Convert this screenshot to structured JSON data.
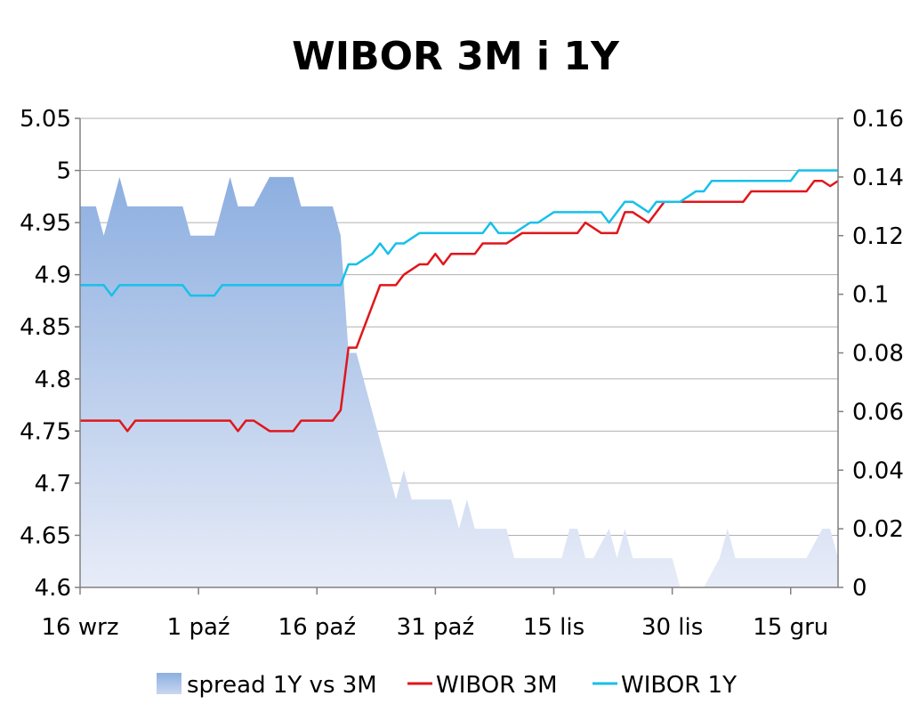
{
  "chart_data": {
    "type": "line",
    "title": "WIBOR 3M i 1Y",
    "xlabel": "",
    "ylabel": "",
    "x_tick_labels": [
      "16 wrz",
      "1 paź",
      "16 paź",
      "31 paź",
      "15 lis",
      "30 lis",
      "15 gru"
    ],
    "x_tick_days": [
      0,
      15,
      30,
      45,
      60,
      75,
      90
    ],
    "x_range_days": [
      0,
      96
    ],
    "y_left": {
      "min": 4.6,
      "max": 5.05,
      "ticks": [
        "4.6",
        "4.65",
        "4.7",
        "4.75",
        "4.8",
        "4.85",
        "4.9",
        "4.95",
        "5",
        "5.05"
      ]
    },
    "y_right": {
      "min": 0,
      "max": 0.16,
      "ticks": [
        "0",
        "0.02",
        "0.04",
        "0.06",
        "0.08",
        "0.1",
        "0.12",
        "0.14",
        "0.16"
      ]
    },
    "grid": true,
    "legend_position": "bottom",
    "colors": {
      "spread_fill_top": "#8DAFE0",
      "spread_fill_bottom": "#E8ECF8",
      "wibor3m": "#E0161B",
      "wibor1y": "#17C0EA",
      "grid": "#B0B0B0"
    },
    "series": [
      {
        "name": "spread 1Y vs 3M",
        "type": "area",
        "axis": "right",
        "x": [
          0,
          1,
          2,
          3,
          4,
          5,
          6,
          7,
          8,
          9,
          10,
          11,
          12,
          13,
          14,
          15,
          16,
          17,
          18,
          19,
          20,
          21,
          22,
          23,
          24,
          25,
          26,
          27,
          28,
          29,
          30,
          31,
          32,
          33,
          34,
          35,
          36,
          37,
          38,
          39,
          40,
          41,
          42,
          43,
          44,
          45,
          46,
          47,
          48,
          49,
          50,
          51,
          52,
          53,
          54,
          55,
          56,
          57,
          58,
          59,
          60,
          61,
          62,
          63,
          64,
          65,
          66,
          67,
          68,
          69,
          70,
          71,
          72,
          73,
          74,
          75,
          76,
          77,
          78,
          79,
          80,
          81,
          82,
          83,
          84,
          85,
          86,
          87,
          88,
          89,
          90,
          91,
          92,
          93,
          94,
          95,
          96
        ],
        "values": [
          0.13,
          0.13,
          0.13,
          0.12,
          0.13,
          0.14,
          0.13,
          0.13,
          0.13,
          0.13,
          0.13,
          0.13,
          0.13,
          0.13,
          0.12,
          0.12,
          0.12,
          0.12,
          0.13,
          0.14,
          0.13,
          0.13,
          0.13,
          0.135,
          0.14,
          0.14,
          0.14,
          0.14,
          0.13,
          0.13,
          0.13,
          0.13,
          0.13,
          0.12,
          0.08,
          0.08,
          0.07,
          0.06,
          0.05,
          0.04,
          0.03,
          0.04,
          0.03,
          0.03,
          0.03,
          0.03,
          0.03,
          0.03,
          0.02,
          0.03,
          0.02,
          0.02,
          0.02,
          0.02,
          0.02,
          0.01,
          0.01,
          0.01,
          0.01,
          0.01,
          0.01,
          0.01,
          0.02,
          0.02,
          0.01,
          0.01,
          0.015,
          0.02,
          0.01,
          0.02,
          0.01,
          0.01,
          0.01,
          0.01,
          0.01,
          0.01,
          0,
          0,
          0,
          0,
          0.005,
          0.01,
          0.02,
          0.01,
          0.01,
          0.01,
          0.01,
          0.01,
          0.01,
          0.01,
          0.01,
          0.01,
          0.01,
          0.015,
          0.02,
          0.02,
          0.01
        ]
      },
      {
        "name": "WIBOR 3M",
        "type": "line",
        "axis": "left",
        "x": [
          0,
          1,
          2,
          3,
          4,
          5,
          6,
          7,
          8,
          9,
          10,
          11,
          12,
          13,
          14,
          15,
          16,
          17,
          18,
          19,
          20,
          21,
          22,
          23,
          24,
          25,
          26,
          27,
          28,
          29,
          30,
          31,
          32,
          33,
          34,
          35,
          36,
          37,
          38,
          39,
          40,
          41,
          42,
          43,
          44,
          45,
          46,
          47,
          48,
          49,
          50,
          51,
          52,
          53,
          54,
          55,
          56,
          57,
          58,
          59,
          60,
          61,
          62,
          63,
          64,
          65,
          66,
          67,
          68,
          69,
          70,
          71,
          72,
          73,
          74,
          75,
          76,
          77,
          78,
          79,
          80,
          81,
          82,
          83,
          84,
          85,
          86,
          87,
          88,
          89,
          90,
          91,
          92,
          93,
          94,
          95,
          96
        ],
        "values": [
          4.76,
          4.76,
          4.76,
          4.76,
          4.76,
          4.76,
          4.75,
          4.76,
          4.76,
          4.76,
          4.76,
          4.76,
          4.76,
          4.76,
          4.76,
          4.76,
          4.76,
          4.76,
          4.76,
          4.76,
          4.75,
          4.76,
          4.76,
          4.755,
          4.75,
          4.75,
          4.75,
          4.75,
          4.76,
          4.76,
          4.76,
          4.76,
          4.76,
          4.77,
          4.83,
          4.83,
          4.85,
          4.87,
          4.89,
          4.89,
          4.89,
          4.9,
          4.905,
          4.91,
          4.91,
          4.92,
          4.91,
          4.92,
          4.92,
          4.92,
          4.92,
          4.93,
          4.93,
          4.93,
          4.93,
          4.935,
          4.94,
          4.94,
          4.94,
          4.94,
          4.94,
          4.94,
          4.94,
          4.94,
          4.95,
          4.945,
          4.94,
          4.94,
          4.94,
          4.96,
          4.96,
          4.955,
          4.95,
          4.96,
          4.97,
          4.97,
          4.97,
          4.97,
          4.97,
          4.97,
          4.97,
          4.97,
          4.97,
          4.97,
          4.97,
          4.98,
          4.98,
          4.98,
          4.98,
          4.98,
          4.98,
          4.98,
          4.98,
          4.99,
          4.99,
          4.985,
          4.99
        ]
      },
      {
        "name": "WIBOR 1Y",
        "type": "line",
        "axis": "left",
        "x": [
          0,
          1,
          2,
          3,
          4,
          5,
          6,
          7,
          8,
          9,
          10,
          11,
          12,
          13,
          14,
          15,
          16,
          17,
          18,
          19,
          20,
          21,
          22,
          23,
          24,
          25,
          26,
          27,
          28,
          29,
          30,
          31,
          32,
          33,
          34,
          35,
          36,
          37,
          38,
          39,
          40,
          41,
          42,
          43,
          44,
          45,
          46,
          47,
          48,
          49,
          50,
          51,
          52,
          53,
          54,
          55,
          56,
          57,
          58,
          59,
          60,
          61,
          62,
          63,
          64,
          65,
          66,
          67,
          68,
          69,
          70,
          71,
          72,
          73,
          74,
          75,
          76,
          77,
          78,
          79,
          80,
          81,
          82,
          83,
          84,
          85,
          86,
          87,
          88,
          89,
          90,
          91,
          92,
          93,
          94,
          95,
          96
        ],
        "values": [
          4.89,
          4.89,
          4.89,
          4.89,
          4.88,
          4.89,
          4.89,
          4.89,
          4.89,
          4.89,
          4.89,
          4.89,
          4.89,
          4.89,
          4.88,
          4.88,
          4.88,
          4.88,
          4.89,
          4.89,
          4.89,
          4.89,
          4.89,
          4.89,
          4.89,
          4.89,
          4.89,
          4.89,
          4.89,
          4.89,
          4.89,
          4.89,
          4.89,
          4.89,
          4.91,
          4.91,
          4.915,
          4.92,
          4.93,
          4.92,
          4.93,
          4.93,
          4.935,
          4.94,
          4.94,
          4.94,
          4.94,
          4.94,
          4.94,
          4.94,
          4.94,
          4.94,
          4.95,
          4.94,
          4.94,
          4.94,
          4.945,
          4.95,
          4.95,
          4.955,
          4.96,
          4.96,
          4.96,
          4.96,
          4.96,
          4.96,
          4.96,
          4.95,
          4.96,
          4.97,
          4.97,
          4.965,
          4.96,
          4.97,
          4.97,
          4.97,
          4.97,
          4.975,
          4.98,
          4.98,
          4.99,
          4.99,
          4.99,
          4.99,
          4.99,
          4.99,
          4.99,
          4.99,
          4.99,
          4.99,
          4.99,
          5,
          5,
          5,
          5,
          5,
          5
        ]
      }
    ]
  }
}
